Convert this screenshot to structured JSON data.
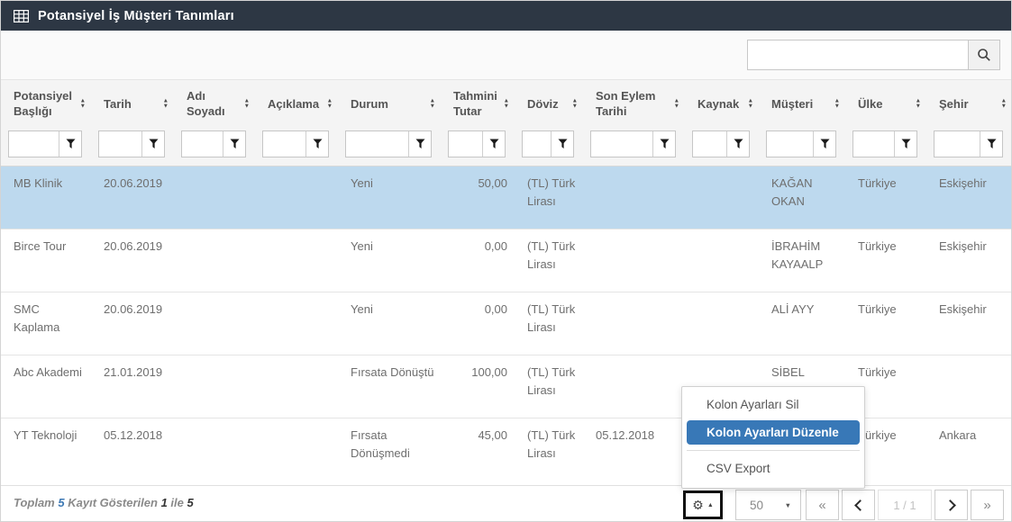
{
  "title_bar": {
    "title": "Potansiyel İş Müşteri Tanımları"
  },
  "toolbar": {
    "search": {
      "value": "",
      "placeholder": ""
    }
  },
  "table": {
    "columns": [
      {
        "key": "potansiyel_basligi",
        "label": "Potansiyel Başlığı"
      },
      {
        "key": "tarih",
        "label": "Tarih"
      },
      {
        "key": "adi_soyadi",
        "label": "Adı Soyadı"
      },
      {
        "key": "aciklama",
        "label": "Açıklama"
      },
      {
        "key": "durum",
        "label": "Durum"
      },
      {
        "key": "tahmini_tutar",
        "label": "Tahmini Tutar"
      },
      {
        "key": "doviz",
        "label": "Döviz"
      },
      {
        "key": "son_eylem_tarihi",
        "label": "Son Eylem Tarihi"
      },
      {
        "key": "kaynak",
        "label": "Kaynak"
      },
      {
        "key": "musteri",
        "label": "Müşteri"
      },
      {
        "key": "ulke",
        "label": "Ülke"
      },
      {
        "key": "sehir",
        "label": "Şehir"
      }
    ],
    "filters": [
      "",
      "",
      "",
      "",
      "",
      "",
      "",
      "",
      "",
      "",
      "",
      ""
    ],
    "rows": [
      {
        "selected": true,
        "cells": [
          "MB Klinik",
          "20.06.2019",
          "",
          "",
          "Yeni",
          "50,00",
          "(TL) Türk Lirası",
          "",
          "",
          "KAĞAN OKAN",
          "Türkiye",
          "Eskişehir"
        ]
      },
      {
        "selected": false,
        "cells": [
          "Birce Tour",
          "20.06.2019",
          "",
          "",
          "Yeni",
          "0,00",
          "(TL) Türk Lirası",
          "",
          "",
          "İBRAHİM KAYAALP",
          "Türkiye",
          "Eskişehir"
        ]
      },
      {
        "selected": false,
        "cells": [
          "SMC Kaplama",
          "20.06.2019",
          "",
          "",
          "Yeni",
          "0,00",
          "(TL) Türk Lirası",
          "",
          "",
          "ALİ AYY",
          "Türkiye",
          "Eskişehir"
        ]
      },
      {
        "selected": false,
        "cells": [
          "Abc Akademi",
          "21.01.2019",
          "",
          "",
          "Fırsata Dönüştü",
          "100,00",
          "(TL) Türk Lirası",
          "",
          "",
          "SİBEL",
          "Türkiye",
          ""
        ]
      },
      {
        "selected": false,
        "cells": [
          "YT Teknoloji",
          "05.12.2018",
          "",
          "",
          "Fırsata Dönüşmedi",
          "45,00",
          "(TL) Türk Lirası",
          "05.12.2018",
          "",
          "",
          "Türkiye",
          "Ankara"
        ]
      }
    ]
  },
  "context_menu": {
    "items": [
      {
        "label": "Kolon Ayarları Sil",
        "active": false
      },
      {
        "label": "Kolon Ayarları Düzenle",
        "active": true
      },
      {
        "label": "CSV Export",
        "active": false
      }
    ]
  },
  "footer": {
    "summary": {
      "prefix": "Toplam",
      "total": "5",
      "shown_label": "Kayıt Gösterilen",
      "from": "1",
      "connector": "ile",
      "to": "5"
    },
    "page_size": "50",
    "pagination": {
      "first_glyph": "«",
      "last_glyph": "»",
      "indicator": "1 / 1"
    }
  },
  "icons": {
    "title": "table-grid-icon",
    "search": "magnifier-icon",
    "filter": "funnel-icon",
    "sort": "sort-arrows-icon",
    "gear_glyph": "⚙",
    "caret_up_glyph": "▲",
    "caret_down_glyph": "▼",
    "sort_up_glyph": "▲",
    "sort_down_glyph": "▼"
  },
  "colors": {
    "title_bar_bg": "#2d3744",
    "selected_row_bg": "#bdd9ee",
    "menu_active_bg": "#3878b7",
    "accent_blue": "#3e79b4"
  }
}
